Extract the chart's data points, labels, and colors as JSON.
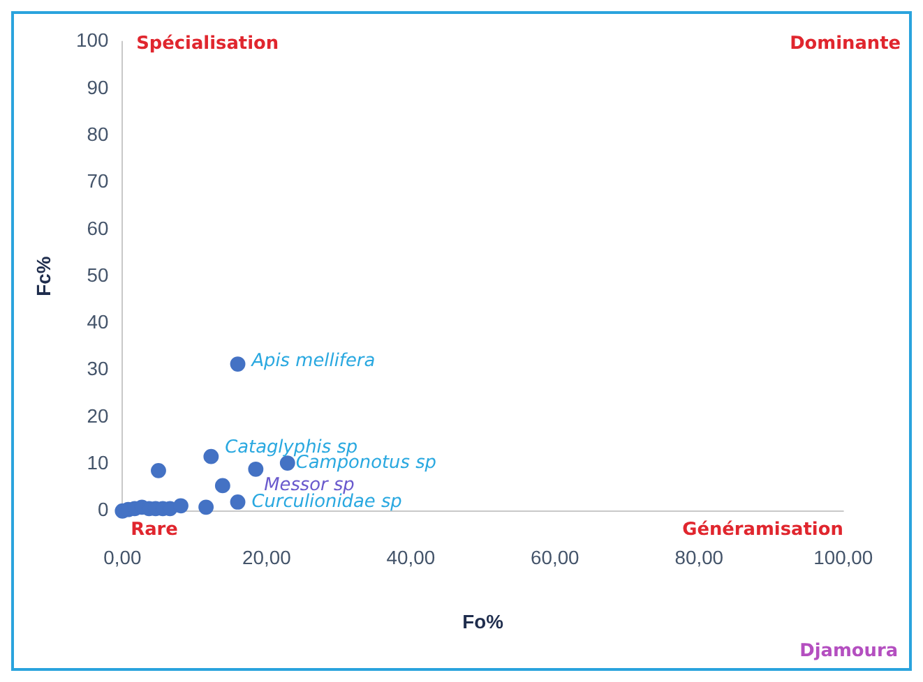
{
  "chart_data": {
    "type": "scatter",
    "xlabel": "Fo%",
    "ylabel": "Fc%",
    "x": [
      0,
      0.8,
      1.7,
      2.7,
      3.7,
      4.6,
      5.6,
      6.6,
      8.1,
      11.6,
      5.0,
      13.9,
      16.0,
      12.3,
      22.9,
      18.5,
      16.0
    ],
    "series": [
      {
        "color": "#4472c4",
        "values": [
          0,
          0.3,
          0.5,
          0.8,
          0.5,
          0.5,
          0.5,
          0.5,
          1.1,
          0.8,
          8.6,
          5.4,
          31.3,
          11.6,
          10.2,
          8.9,
          1.9
        ]
      }
    ],
    "xlim": [
      0,
      100
    ],
    "ylim": [
      0,
      100
    ],
    "xticks": [
      {
        "value": 0,
        "label": "0,00"
      },
      {
        "value": 20,
        "label": "20,00"
      },
      {
        "value": 40,
        "label": "40,00"
      },
      {
        "value": 60,
        "label": "60,00"
      },
      {
        "value": 80,
        "label": "80,00"
      },
      {
        "value": 100,
        "label": "100,00"
      }
    ],
    "yticks": [
      0,
      10,
      20,
      30,
      40,
      50,
      60,
      70,
      80,
      90,
      100
    ],
    "grid": false,
    "legend": false,
    "marker": "circle",
    "annotations": [
      {
        "text": "Apis mellifera",
        "x": 16.0,
        "y": 31.3
      },
      {
        "text": "Cataglyphis sp",
        "x": 12.3,
        "y": 11.6
      },
      {
        "text": "Camponotus sp",
        "x": 22.9,
        "y": 10.2
      },
      {
        "text": "Messor sp",
        "x": 18.5,
        "y": 8.9
      },
      {
        "text": "Curculionidae sp",
        "x": 16.0,
        "y": 1.9
      },
      "Spécialisation",
      "Dominante",
      "Rare",
      "Généramisation",
      "Djamoura"
    ]
  }
}
